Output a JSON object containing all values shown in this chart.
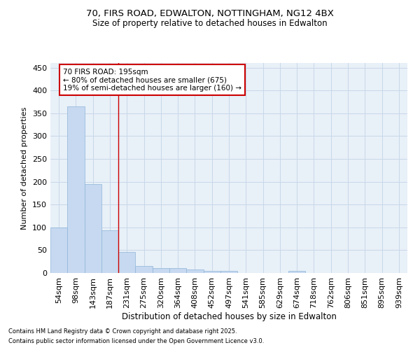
{
  "title_line1": "70, FIRS ROAD, EDWALTON, NOTTINGHAM, NG12 4BX",
  "title_line2": "Size of property relative to detached houses in Edwalton",
  "xlabel": "Distribution of detached houses by size in Edwalton",
  "ylabel": "Number of detached properties",
  "bar_labels": [
    "54sqm",
    "98sqm",
    "143sqm",
    "187sqm",
    "231sqm",
    "275sqm",
    "320sqm",
    "364sqm",
    "408sqm",
    "452sqm",
    "497sqm",
    "541sqm",
    "585sqm",
    "629sqm",
    "674sqm",
    "718sqm",
    "762sqm",
    "806sqm",
    "851sqm",
    "895sqm",
    "939sqm"
  ],
  "bar_values": [
    99,
    365,
    194,
    93,
    46,
    15,
    11,
    11,
    8,
    5,
    5,
    0,
    0,
    0,
    4,
    0,
    0,
    0,
    0,
    0,
    0
  ],
  "bar_color": "#c6d9f0",
  "bar_edge_color": "#8fb4d9",
  "annotation_text_line1": "70 FIRS ROAD: 195sqm",
  "annotation_text_line2": "← 80% of detached houses are smaller (675)",
  "annotation_text_line3": "19% of semi-detached houses are larger (160) →",
  "annotation_box_color": "#ffffff",
  "annotation_box_edge": "#cc0000",
  "vline_color": "#cc0000",
  "grid_color": "#c8d8e8",
  "background_color": "#e8f0f8",
  "ylim": [
    0,
    460
  ],
  "yticks": [
    0,
    50,
    100,
    150,
    200,
    250,
    300,
    350,
    400,
    450
  ],
  "footnote_line1": "Contains HM Land Registry data © Crown copyright and database right 2025.",
  "footnote_line2": "Contains public sector information licensed under the Open Government Licence v3.0."
}
